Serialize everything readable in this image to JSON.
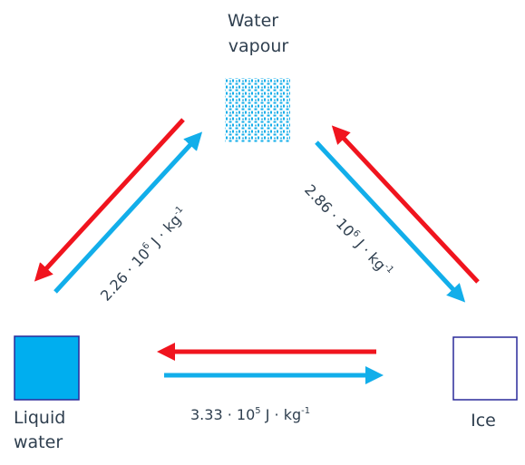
{
  "nodes": {
    "vapour": {
      "label_line1": "Water",
      "label_line2": "vapour"
    },
    "liquid": {
      "label_line1": "Liquid",
      "label_line2": "water"
    },
    "ice": {
      "label": "Ice"
    }
  },
  "transitions": {
    "vapour_liquid": {
      "mantissa": "2.26 · 10",
      "exponent": "6",
      "unit": " J · kg",
      "unit_exponent": "-1"
    },
    "vapour_ice": {
      "mantissa": "2.86 · 10",
      "exponent": "6",
      "unit": " J · kg",
      "unit_exponent": "-1"
    },
    "liquid_ice": {
      "mantissa": "3.33 · 10",
      "exponent": "5",
      "unit": " J · kg",
      "unit_exponent": "-1"
    }
  },
  "colors": {
    "release_arrow": "#f0141e",
    "absorb_arrow": "#12aeea",
    "liquid_fill": "#00aeef",
    "box_border": "#2a2a9a",
    "text": "#2f3f4f"
  }
}
